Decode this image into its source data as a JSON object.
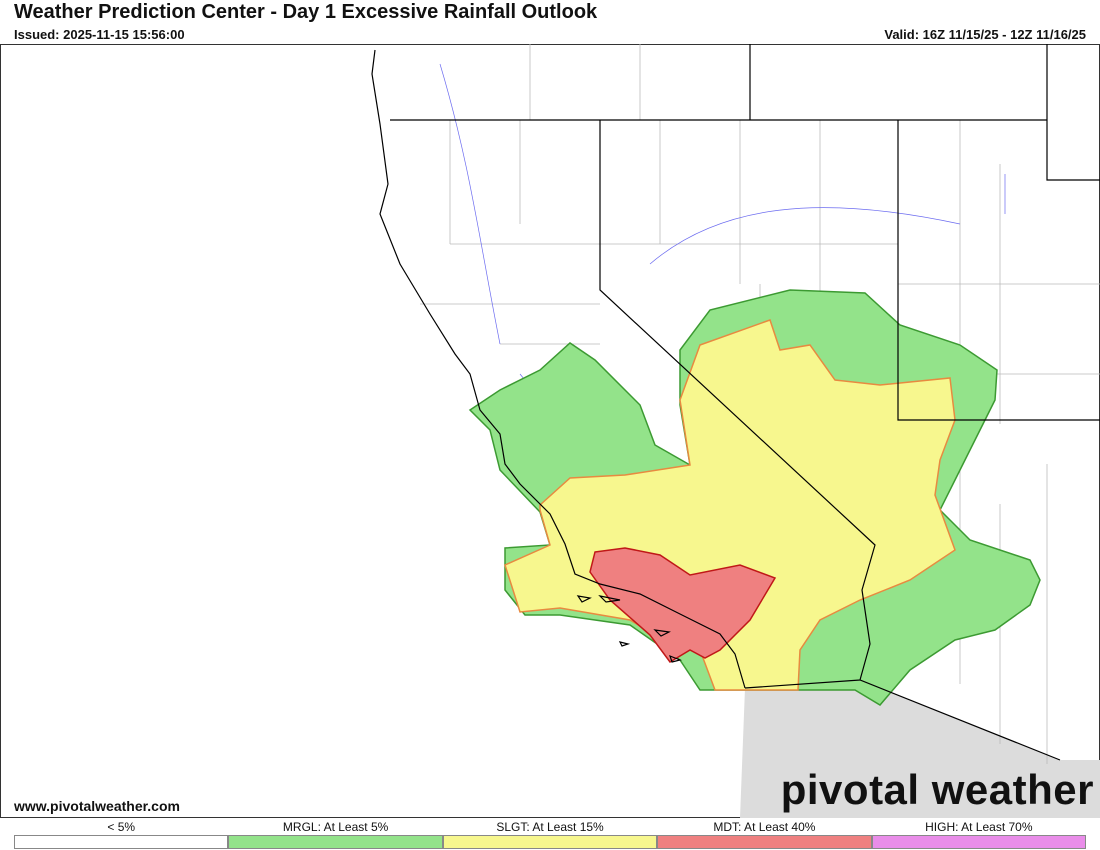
{
  "header": {
    "title": "Weather Prediction Center - Day 1 Excessive Rainfall Outlook",
    "issued": "Issued: 2025-11-15 15:56:00",
    "valid": "Valid: 16Z 11/15/25 - 12Z 11/16/25"
  },
  "footer": {
    "website": "www.pivotalweather.com",
    "logo": "pivotal weather"
  },
  "legend": [
    {
      "label": "< 5%",
      "color": "#ffffff"
    },
    {
      "label": "MRGL: At Least 5%",
      "color": "#93e38a"
    },
    {
      "label": "SLGT: At Least 15%",
      "color": "#f7f78e"
    },
    {
      "label": "MDT: At Least 40%",
      "color": "#ef8080"
    },
    {
      "label": "HIGH: At Least 70%",
      "color": "#e98de9"
    }
  ]
}
